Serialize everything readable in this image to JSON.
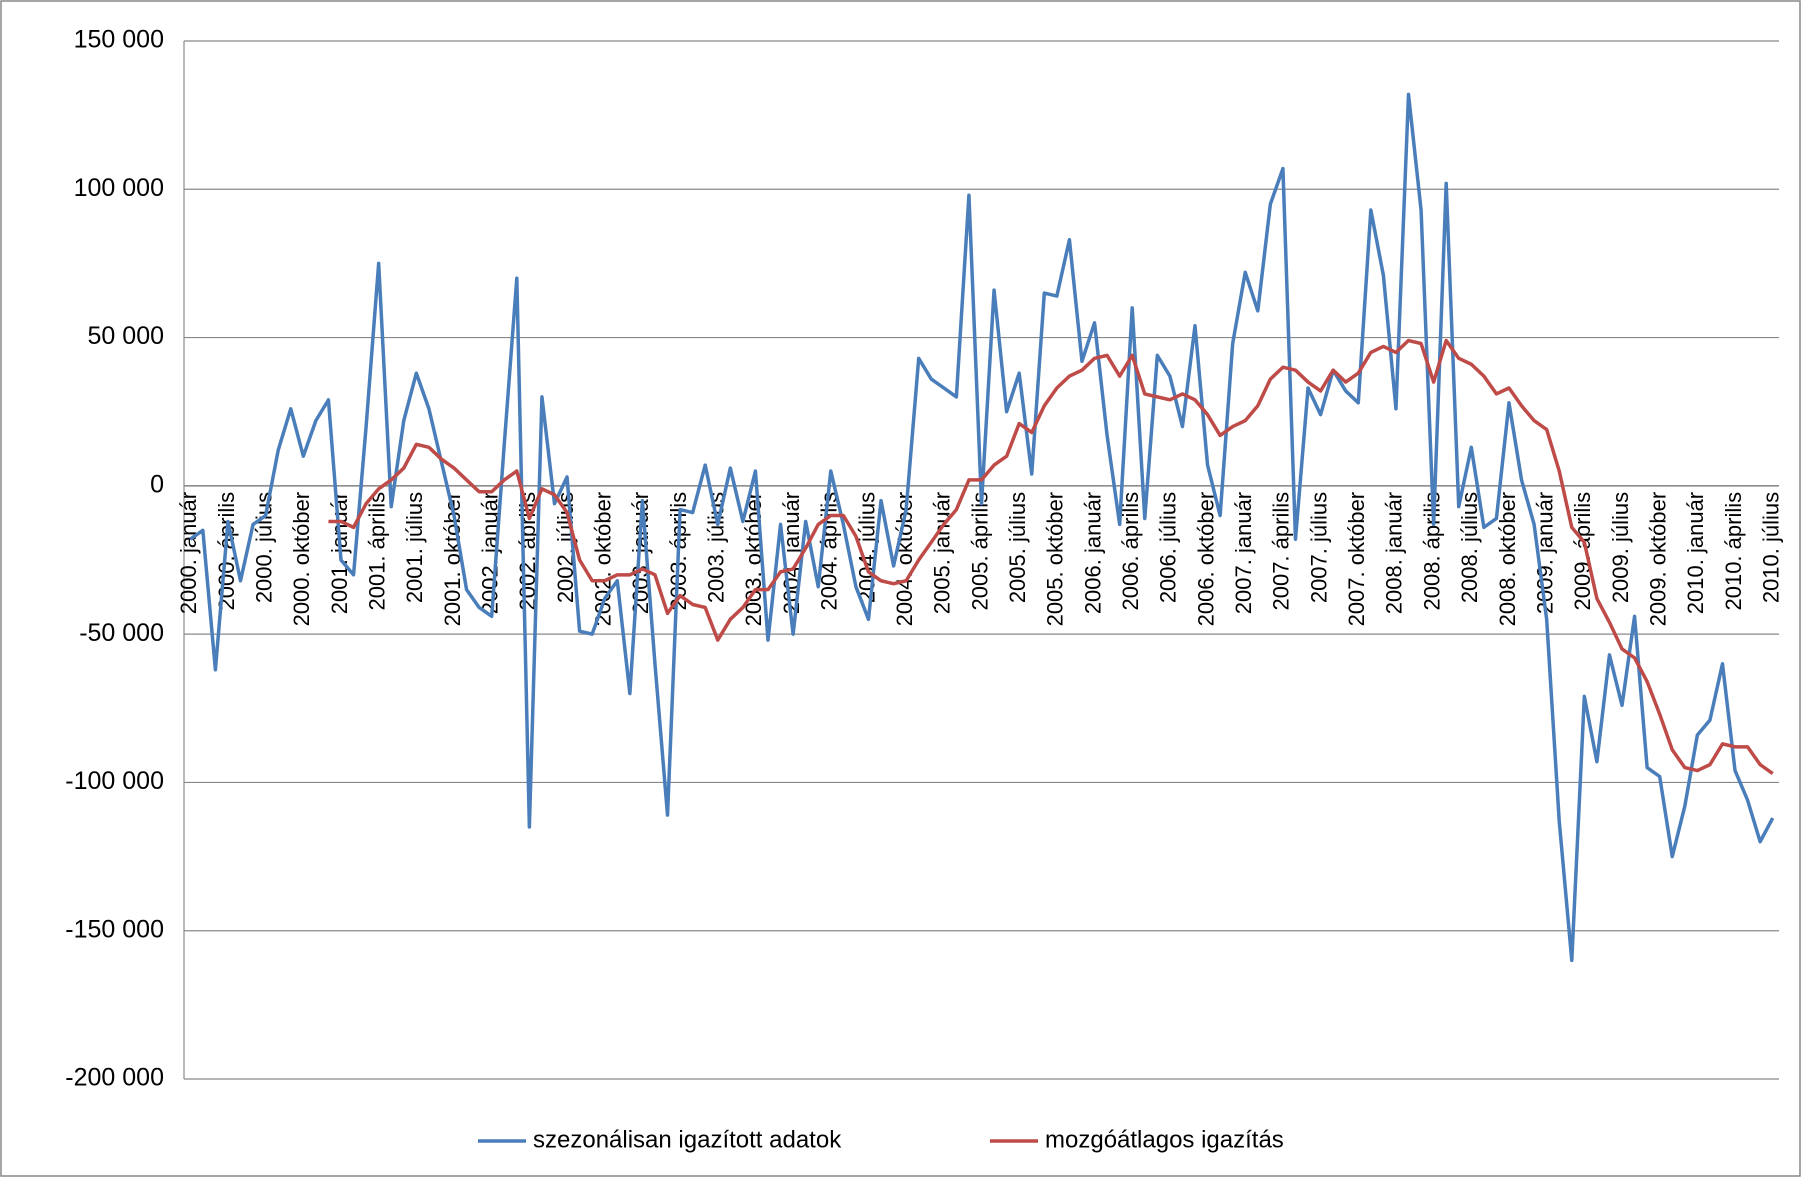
{
  "chart_data": {
    "type": "line",
    "categories": [
      "2000. január",
      null,
      null,
      "2000. április",
      null,
      null,
      "2000. július",
      null,
      null,
      "2000. október",
      null,
      null,
      "2001. január",
      null,
      null,
      "2001. április",
      null,
      null,
      "2001. július",
      null,
      null,
      "2001. október",
      null,
      null,
      "2002. január",
      null,
      null,
      "2002. április",
      null,
      null,
      "2002. július",
      null,
      null,
      "2002. október",
      null,
      null,
      "2003. január",
      null,
      null,
      "2003. április",
      null,
      null,
      "2003. július",
      null,
      null,
      "2003. október",
      null,
      null,
      "2004. január",
      null,
      null,
      "2004. április",
      null,
      null,
      "2004. július",
      null,
      null,
      "2004. október",
      null,
      null,
      "2005. január",
      null,
      null,
      "2005. április",
      null,
      null,
      "2005. július",
      null,
      null,
      "2005. október",
      null,
      null,
      "2006. január",
      null,
      null,
      "2006. április",
      null,
      null,
      "2006. július",
      null,
      null,
      "2006. október",
      null,
      null,
      "2007. január",
      null,
      null,
      "2007. április",
      null,
      null,
      "2007. július",
      null,
      null,
      "2007. október",
      null,
      null,
      "2008. január",
      null,
      null,
      "2008. április",
      null,
      null,
      "2008. július",
      null,
      null,
      "2008. október",
      null,
      null,
      "2009. január",
      null,
      null,
      "2009. április",
      null,
      null,
      "2009. július",
      null,
      null,
      "2009. október",
      null,
      null,
      "2010. január",
      null,
      null,
      "2010. április",
      null,
      null,
      "2010. július"
    ],
    "series": [
      {
        "name": "szezonálisan igazított adatok",
        "color": "#4a7ebb",
        "values": [
          -18000,
          -15000,
          -62000,
          -12000,
          -32000,
          -13000,
          -10000,
          12000,
          26000,
          10000,
          22000,
          29000,
          -25000,
          -30000,
          20000,
          75000,
          -7000,
          22000,
          38000,
          26000,
          8000,
          -10000,
          -35000,
          -41000,
          -44000,
          14000,
          70000,
          -115000,
          30000,
          -6000,
          3000,
          -49000,
          -50000,
          -38000,
          -32000,
          -70000,
          -5000,
          -60000,
          -111000,
          -8000,
          -9000,
          7000,
          -13000,
          6000,
          -12000,
          5000,
          -52000,
          -13000,
          -50000,
          -12000,
          -34000,
          5000,
          -13000,
          -34000,
          -45000,
          -5000,
          -27000,
          -8000,
          43000,
          36000,
          33000,
          30000,
          98000,
          -6000,
          66000,
          25000,
          38000,
          4000,
          65000,
          64000,
          83000,
          42000,
          55000,
          17000,
          -13000,
          60000,
          -11000,
          44000,
          37000,
          20000,
          54000,
          7000,
          -10000,
          48000,
          72000,
          59000,
          95000,
          107000,
          -18000,
          33000,
          24000,
          39000,
          32000,
          28000,
          93000,
          71000,
          26000,
          132000,
          93000,
          -13000,
          102000,
          -7000,
          13000,
          -14000,
          -11000,
          28000,
          2000,
          -13000,
          -45000,
          -113000,
          -160000,
          -71000,
          -93000,
          -57000,
          -74000,
          -44000,
          -95000,
          -98000,
          -125000,
          -108000,
          -84000,
          -79000,
          -60000,
          -96000,
          -106000,
          -120000,
          -112000
        ]
      },
      {
        "name": "mozgóátlagos igazítás",
        "color": "#be4b48",
        "values": [
          null,
          null,
          null,
          null,
          null,
          null,
          null,
          null,
          null,
          null,
          null,
          -12000,
          -12000,
          -14000,
          -6000,
          -1000,
          2000,
          6000,
          14000,
          13000,
          9000,
          6000,
          2000,
          -2000,
          -2000,
          2000,
          5000,
          -11000,
          -1000,
          -3000,
          -9000,
          -25000,
          -32000,
          -32000,
          -30000,
          -30000,
          -28000,
          -30000,
          -43000,
          -37000,
          -40000,
          -41000,
          -52000,
          -45000,
          -41000,
          -35000,
          -35000,
          -29000,
          -28000,
          -21000,
          -13000,
          -10000,
          -10000,
          -17000,
          -29000,
          -32000,
          -33000,
          -32000,
          -25000,
          -19000,
          -13000,
          -8000,
          2000,
          2000,
          7000,
          10000,
          21000,
          18000,
          27000,
          33000,
          37000,
          39000,
          43000,
          44000,
          37000,
          44000,
          31000,
          30000,
          29000,
          31000,
          29000,
          24000,
          17000,
          20000,
          22000,
          27000,
          36000,
          40000,
          39000,
          35000,
          32000,
          39000,
          35000,
          38000,
          45000,
          47000,
          45000,
          49000,
          48000,
          35000,
          49000,
          43000,
          41000,
          37000,
          31000,
          33000,
          27000,
          22000,
          19000,
          5000,
          -14000,
          -19000,
          -38000,
          -46000,
          -55000,
          -58000,
          -66000,
          -77000,
          -89000,
          -95000,
          -96000,
          -94000,
          -87000,
          -88000,
          -88000,
          -94000,
          -97000
        ]
      }
    ],
    "ylim": [
      -200000,
      150000
    ],
    "yticks": [
      {
        "value": -200000,
        "label": "-200 000"
      },
      {
        "value": -150000,
        "label": "-150 000"
      },
      {
        "value": -100000,
        "label": "-100 000"
      },
      {
        "value": -50000,
        "label": "-50 000"
      },
      0,
      {
        "value": 50000,
        "label": "50 000"
      },
      {
        "value": 100000,
        "label": "100 000"
      },
      {
        "value": 150000,
        "label": "150 000"
      }
    ],
    "grid": true,
    "legend": "bottom"
  }
}
